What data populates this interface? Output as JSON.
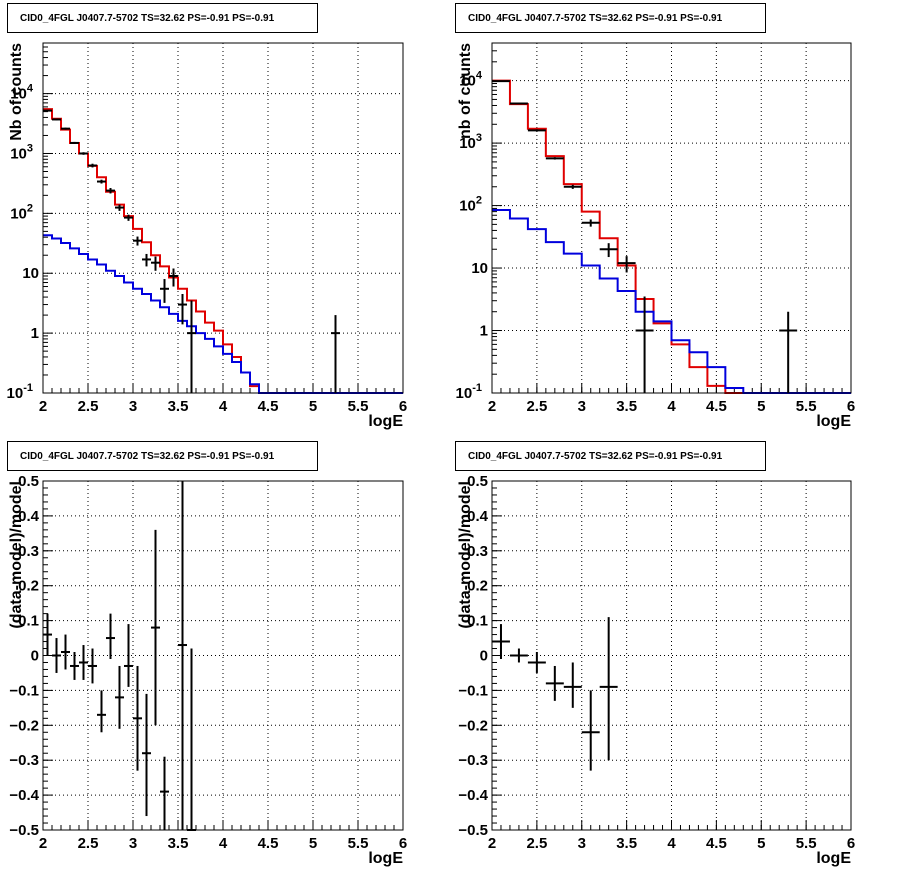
{
  "colors": {
    "data": "#000000",
    "model_total": "#e00000",
    "model_component": "#0000dd",
    "grid": "#000000"
  },
  "chart_data": [
    {
      "type": "line",
      "title": "CID0_4FGL J0407.7-5702 TS=32.62 PS=-0.91 PS=-0.91",
      "xlabel": "logE",
      "ylabel": "Nb of counts",
      "xlim": [
        2,
        6
      ],
      "ylim": [
        0.1,
        70000
      ],
      "yscale": "log",
      "grid": true,
      "x_ticks": [
        "2",
        "2.5",
        "3",
        "3.5",
        "4",
        "4.5",
        "5",
        "5.5",
        "6"
      ],
      "y_ticks": [
        {
          "value": 0.1,
          "label": "10",
          "sup": "-1"
        },
        {
          "value": 1,
          "label": "1",
          "sup": ""
        },
        {
          "value": 10,
          "label": "10",
          "sup": ""
        },
        {
          "value": 100,
          "label": "10",
          "sup": "2"
        },
        {
          "value": 1000,
          "label": "10",
          "sup": "3"
        },
        {
          "value": 10000,
          "label": "10",
          "sup": "4"
        }
      ],
      "series": [
        {
          "kind": "step",
          "color": "model_total",
          "bin_edges": [
            2.0,
            2.1,
            2.2,
            2.3,
            2.4,
            2.5,
            2.6,
            2.7,
            2.8,
            2.9,
            3.0,
            3.1,
            3.2,
            3.3,
            3.4,
            3.5,
            3.6,
            3.7,
            3.8,
            3.9,
            4.0,
            4.1,
            4.2,
            4.3,
            4.4,
            4.5,
            4.6,
            4.7,
            4.8,
            4.9,
            5.0,
            5.1,
            5.2,
            5.3,
            5.4,
            5.5,
            5.6,
            5.7,
            5.8,
            5.9,
            6.0
          ],
          "values": [
            5500,
            3800,
            2500,
            1500,
            1000,
            620,
            400,
            230,
            140,
            90,
            55,
            33,
            20,
            13,
            8.5,
            5.5,
            3.5,
            2.3,
            1.5,
            1.1,
            0.65,
            0.4,
            0.22,
            0.13,
            0.1,
            0.1,
            0.1,
            0.1,
            0.1,
            0.1,
            0.1,
            0.1,
            0.1,
            0.1,
            0.1,
            0.1,
            0.1,
            0.1,
            0.1,
            0.1
          ]
        },
        {
          "kind": "step",
          "color": "model_component",
          "bin_edges": [
            2.0,
            2.1,
            2.2,
            2.3,
            2.4,
            2.5,
            2.6,
            2.7,
            2.8,
            2.9,
            3.0,
            3.1,
            3.2,
            3.3,
            3.4,
            3.5,
            3.6,
            3.7,
            3.8,
            3.9,
            4.0,
            4.1,
            4.2,
            4.3,
            4.4,
            4.5,
            4.6,
            4.7,
            4.8,
            4.9,
            5.0,
            5.1,
            5.2,
            5.3,
            5.4,
            5.5,
            5.6,
            5.7,
            5.8,
            5.9,
            6.0
          ],
          "values": [
            43,
            38,
            32,
            26,
            21,
            17,
            14,
            11,
            9,
            7,
            5.5,
            4.5,
            3.5,
            2.7,
            2.1,
            1.6,
            1.3,
            1.0,
            0.8,
            0.6,
            0.45,
            0.33,
            0.22,
            0.14,
            0.1,
            0.1,
            0.1,
            0.1,
            0.1,
            0.1,
            0.1,
            0.1,
            0.1,
            0.1,
            0.1,
            0.1,
            0.1,
            0.1,
            0.1,
            0.1
          ]
        },
        {
          "kind": "points",
          "color": "data",
          "x": [
            2.05,
            2.15,
            2.25,
            2.35,
            2.45,
            2.55,
            2.65,
            2.75,
            2.85,
            2.95,
            3.05,
            3.15,
            3.25,
            3.35,
            3.45,
            3.55,
            3.65,
            5.25
          ],
          "xerr": 0.05,
          "y": [
            5200,
            3700,
            2600,
            1500,
            1000,
            630,
            340,
            240,
            125,
            85,
            35,
            17,
            15,
            5.5,
            9,
            3,
            1,
            1
          ],
          "ylo": [
            5050,
            3580,
            2500,
            1440,
            950,
            585,
            315,
            215,
            110,
            75,
            29,
            13,
            11,
            3.2,
            6,
            1.4,
            0.1,
            0.1
          ],
          "yhi": [
            5350,
            3820,
            2700,
            1560,
            1050,
            675,
            365,
            265,
            140,
            95,
            41,
            21,
            19,
            8,
            12,
            4.5,
            3.5,
            2
          ]
        }
      ]
    },
    {
      "type": "line",
      "title": "CID0_4FGL J0407.7-5702 TS=32.62 PS=-0.91 PS=-0.91",
      "xlabel": "logE",
      "ylabel": "nb of counts",
      "xlim": [
        2,
        6
      ],
      "ylim": [
        0.1,
        40000
      ],
      "yscale": "log",
      "grid": true,
      "x_ticks": [
        "2",
        "2.5",
        "3",
        "3.5",
        "4",
        "4.5",
        "5",
        "5.5",
        "6"
      ],
      "y_ticks": [
        {
          "value": 0.1,
          "label": "10",
          "sup": "-1"
        },
        {
          "value": 1,
          "label": "1",
          "sup": ""
        },
        {
          "value": 10,
          "label": "10",
          "sup": ""
        },
        {
          "value": 100,
          "label": "10",
          "sup": "2"
        },
        {
          "value": 1000,
          "label": "10",
          "sup": "3"
        },
        {
          "value": 10000,
          "label": "10",
          "sup": "4"
        }
      ],
      "series": [
        {
          "kind": "step",
          "color": "model_total",
          "bin_edges": [
            2.0,
            2.2,
            2.4,
            2.6,
            2.8,
            3.0,
            3.2,
            3.4,
            3.6,
            3.8,
            4.0,
            4.2,
            4.4,
            4.6,
            4.8,
            5.0,
            5.2,
            5.4,
            5.6,
            5.8,
            6.0
          ],
          "values": [
            10000,
            4200,
            1700,
            620,
            220,
            80,
            30,
            11,
            3.2,
            1.3,
            0.6,
            0.26,
            0.13,
            0.1,
            0.1,
            0.1,
            0.1,
            0.1,
            0.1,
            0.1
          ]
        },
        {
          "kind": "step",
          "color": "model_component",
          "bin_edges": [
            2.0,
            2.2,
            2.4,
            2.6,
            2.8,
            3.0,
            3.2,
            3.4,
            3.6,
            3.8,
            4.0,
            4.2,
            4.4,
            4.6,
            4.8,
            5.0,
            5.2,
            5.4,
            5.6,
            5.8,
            6.0
          ],
          "values": [
            85,
            62,
            42,
            26,
            17,
            11,
            6.8,
            4.3,
            2.0,
            1.4,
            0.7,
            0.45,
            0.26,
            0.12,
            0.1,
            0.1,
            0.1,
            0.1,
            0.1,
            0.1
          ]
        },
        {
          "kind": "points",
          "color": "data",
          "x": [
            2.1,
            2.3,
            2.5,
            2.7,
            2.9,
            3.1,
            3.3,
            3.5,
            3.7,
            5.3
          ],
          "xerr": 0.1,
          "y": [
            9800,
            4300,
            1600,
            570,
            200,
            53,
            20,
            12,
            1,
            1
          ],
          "ylo": [
            9600,
            4180,
            1540,
            545,
            185,
            46,
            15,
            8.5,
            0.1,
            0.1
          ],
          "yhi": [
            10000,
            4420,
            1660,
            595,
            215,
            60,
            25,
            15.5,
            3.5,
            2
          ]
        }
      ]
    },
    {
      "type": "scatter",
      "title": "CID0_4FGL J0407.7-5702 TS=32.62 PS=-0.91 PS=-0.91",
      "xlabel": "logE",
      "ylabel": "(data-model)/model",
      "xlim": [
        2,
        6
      ],
      "ylim": [
        -0.5,
        0.5
      ],
      "yscale": "linear",
      "grid": true,
      "x_ticks": [
        "2",
        "2.5",
        "3",
        "3.5",
        "4",
        "4.5",
        "5",
        "5.5",
        "6"
      ],
      "y_ticks": [
        {
          "value": 0.5,
          "label": "0.5"
        },
        {
          "value": 0.4,
          "label": "0.4"
        },
        {
          "value": 0.3,
          "label": "0.3"
        },
        {
          "value": 0.2,
          "label": "0.2"
        },
        {
          "value": 0.1,
          "label": "0.1"
        },
        {
          "value": 0,
          "label": "0"
        },
        {
          "value": -0.1,
          "label": "−0.1"
        },
        {
          "value": -0.2,
          "label": "−0.2"
        },
        {
          "value": -0.3,
          "label": "−0.3"
        },
        {
          "value": -0.4,
          "label": "−0.4"
        },
        {
          "value": -0.5,
          "label": "−0.5"
        }
      ],
      "series": [
        {
          "kind": "points",
          "color": "data",
          "x": [
            2.05,
            2.15,
            2.25,
            2.35,
            2.45,
            2.55,
            2.65,
            2.75,
            2.85,
            2.95,
            3.05,
            3.15,
            3.25,
            3.35,
            3.55,
            3.65
          ],
          "xerr": 0.05,
          "y": [
            0.06,
            0.0,
            0.01,
            -0.03,
            -0.02,
            -0.03,
            -0.17,
            0.05,
            -0.12,
            -0.03,
            -0.18,
            -0.28,
            0.08,
            -0.39,
            0.03,
            -0.5
          ],
          "ylo": [
            0.0,
            -0.05,
            -0.04,
            -0.07,
            -0.07,
            -0.08,
            -0.22,
            -0.01,
            -0.21,
            -0.09,
            -0.33,
            -0.46,
            -0.2,
            -0.5,
            -0.5,
            -0.5
          ],
          "yhi": [
            0.12,
            0.05,
            0.06,
            0.01,
            0.03,
            0.02,
            -0.1,
            0.12,
            -0.03,
            0.09,
            -0.03,
            -0.11,
            0.36,
            -0.29,
            0.5,
            0.02
          ]
        }
      ]
    },
    {
      "type": "scatter",
      "title": "CID0_4FGL J0407.7-5702 TS=32.62 PS=-0.91 PS=-0.91",
      "xlabel": "logE",
      "ylabel": "(data-model)/model",
      "xlim": [
        2,
        6
      ],
      "ylim": [
        -0.5,
        0.5
      ],
      "yscale": "linear",
      "grid": true,
      "x_ticks": [
        "2",
        "2.5",
        "3",
        "3.5",
        "4",
        "4.5",
        "5",
        "5.5",
        "6"
      ],
      "y_ticks": [
        {
          "value": 0.5,
          "label": "0.5"
        },
        {
          "value": 0.4,
          "label": "0.4"
        },
        {
          "value": 0.3,
          "label": "0.3"
        },
        {
          "value": 0.2,
          "label": "0.2"
        },
        {
          "value": 0.1,
          "label": "0.1"
        },
        {
          "value": 0,
          "label": "0"
        },
        {
          "value": -0.1,
          "label": "−0.1"
        },
        {
          "value": -0.2,
          "label": "−0.2"
        },
        {
          "value": -0.3,
          "label": "−0.3"
        },
        {
          "value": -0.4,
          "label": "−0.4"
        },
        {
          "value": -0.5,
          "label": "−0.5"
        }
      ],
      "series": [
        {
          "kind": "points",
          "color": "data",
          "x": [
            2.1,
            2.3,
            2.5,
            2.7,
            2.9,
            3.1,
            3.3
          ],
          "xerr": 0.1,
          "y": [
            0.04,
            0.0,
            -0.02,
            -0.08,
            -0.09,
            -0.22,
            -0.09
          ],
          "ylo": [
            -0.01,
            -0.02,
            -0.05,
            -0.13,
            -0.15,
            -0.33,
            -0.3
          ],
          "yhi": [
            0.09,
            0.02,
            0.01,
            -0.03,
            -0.02,
            -0.1,
            0.11
          ]
        }
      ]
    }
  ]
}
